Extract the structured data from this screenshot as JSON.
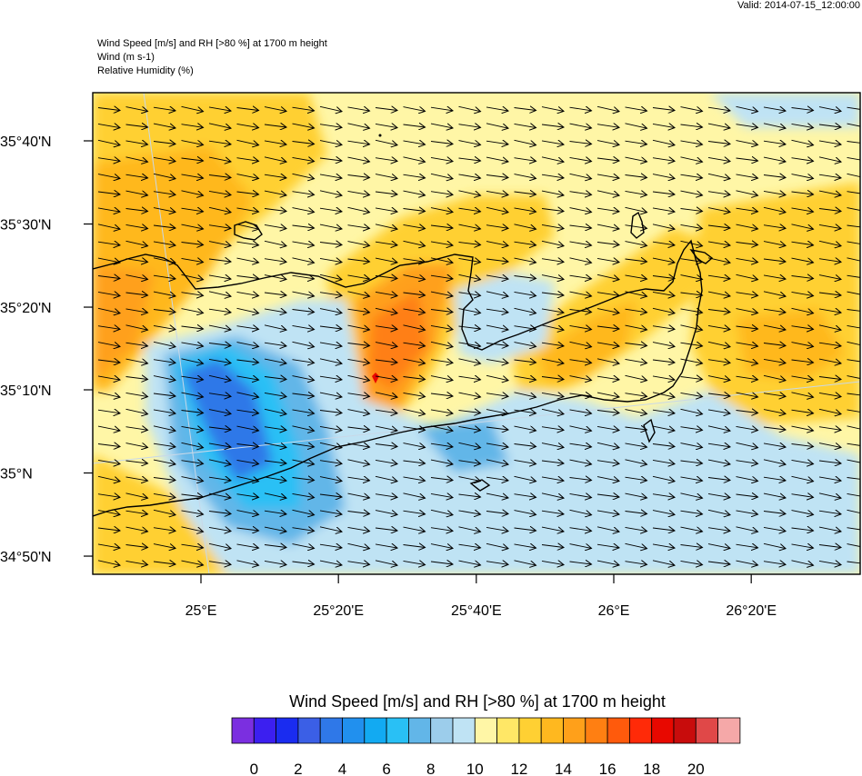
{
  "valid_time": "Valid: 2014-07-15_12:00:00",
  "titles": [
    "Wind Speed [m/s] and RH [>80 %] at 1700 m height",
    "Wind   (m s-1)",
    "Relative Humidity   (%)"
  ],
  "lat_labels": [
    {
      "label": "35°40'N",
      "lat": 35.667
    },
    {
      "label": "35°30'N",
      "lat": 35.5
    },
    {
      "label": "35°20'N",
      "lat": 35.333
    },
    {
      "label": "35°10'N",
      "lat": 35.167
    },
    {
      "label": "35°N",
      "lat": 35.0
    },
    {
      "label": "34°50'N",
      "lat": 34.833
    }
  ],
  "lon_labels": [
    {
      "label": "25°E",
      "lon": 25.0
    },
    {
      "label": "25°20'E",
      "lon": 25.333
    },
    {
      "label": "25°40'E",
      "lon": 25.667
    },
    {
      "label": "26°E",
      "lon": 26.0
    },
    {
      "label": "26°20'E",
      "lon": 26.333
    }
  ],
  "colorbar": {
    "title": "Wind Speed [m/s] and RH [>80 %] at 1700 m height",
    "colors": [
      "#7b2fe0",
      "#3c1ff0",
      "#1a2cf0",
      "#3b5fe6",
      "#2f78e8",
      "#2190ee",
      "#12aaf2",
      "#29c0f5",
      "#62b6e8",
      "#9ccdeb",
      "#bfe3f4",
      "#fff6a6",
      "#ffe766",
      "#ffd033",
      "#ffb81f",
      "#ffa01a",
      "#ff7f12",
      "#ff5a0c",
      "#ff2a08",
      "#e80800",
      "#c80c0c",
      "#e04848",
      "#f5a8a8"
    ],
    "labels": [
      "0",
      "2",
      "4",
      "6",
      "8",
      "10",
      "12",
      "14",
      "16",
      "18",
      "20"
    ]
  }
}
